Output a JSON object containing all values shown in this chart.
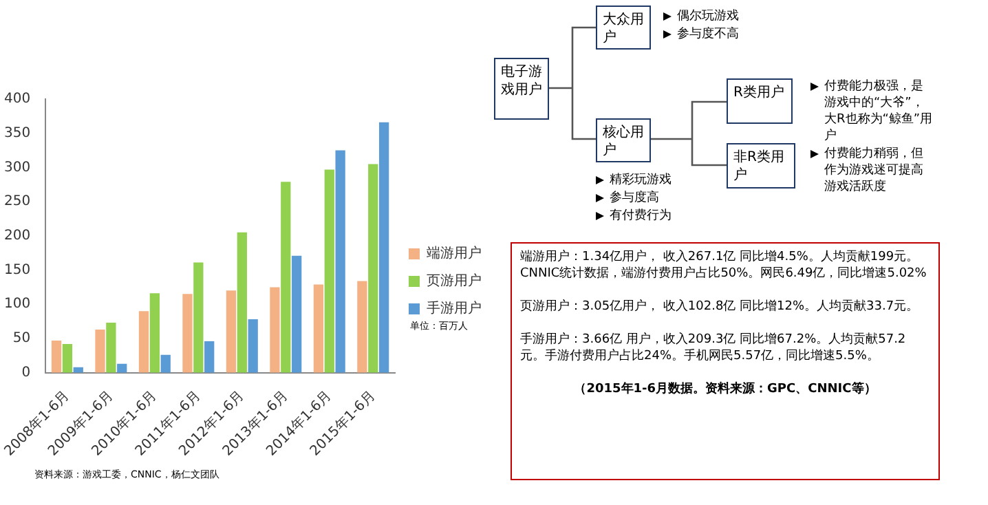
{
  "chart_data": {
    "type": "bar",
    "categories": [
      "2008年1-6月",
      "2009年1-6月",
      "2010年1-6月",
      "2011年1-6月",
      "2012年1-6月",
      "2013年1-6月",
      "2014年1-6月",
      "2015年1-6月"
    ],
    "series": [
      {
        "name": "端游用户",
        "color": "#f4b183",
        "values": [
          47,
          63,
          90,
          115,
          120,
          125,
          129,
          134
        ]
      },
      {
        "name": "页游用户",
        "color": "#92d050",
        "values": [
          42,
          73,
          116,
          161,
          205,
          279,
          297,
          305
        ]
      },
      {
        "name": "手游用户",
        "color": "#5b9bd5",
        "values": [
          8,
          13,
          26,
          46,
          78,
          171,
          325,
          366
        ]
      }
    ],
    "ylim": [
      0,
      400
    ],
    "yticks": [
      0,
      50,
      100,
      150,
      200,
      250,
      300,
      350,
      400
    ],
    "grid": false,
    "legend": "right",
    "annotations": [
      "单位：百万人",
      "资料来源：游戏工委，CNNIC，杨仁文团队",
      "电子游戏用户",
      "大众用户",
      "核心用户",
      "R类用户",
      "非R类用户",
      "偶尔玩游戏",
      "参与度不高",
      "精彩玩游戏",
      "参与度高",
      "有付费行为",
      "付费能力极强，是游戏中的“大爷”，大R也称为“鲸鱼”用户",
      "付费能力稍弱，但作为游戏迷可提高游戏活跃度",
      "端游用户：1.34亿用户， 收入267.1亿 同比增4.5%。人均贡献199元。CNNIC统计数据，端游付费用户占比50%。网民6.49亿，同比增速5.02%",
      "页游用户：3.05亿用户， 收入102.8亿 同比增12%。人均贡献33.7元。",
      "手游用户：3.66亿 用户，收入209.3亿 同比增67.2%。人均贡献57.2元。手游付费用户占比24%。手机网民5.57亿，同比增速5.5%。",
      "（2015年1-6月数据。资料来源：GPC、CNNIC等）"
    ]
  }
}
